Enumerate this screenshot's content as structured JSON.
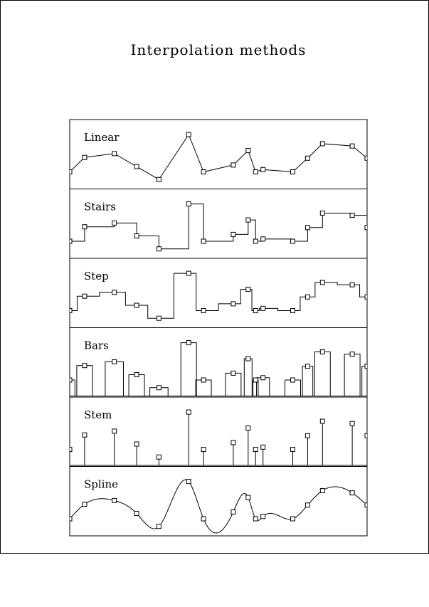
{
  "title": "Interpolation methods",
  "colors": {
    "line": "#000000",
    "background": "#ffffff"
  },
  "chart_data": {
    "type": "line",
    "title": "Interpolation methods",
    "xlabel": "",
    "ylabel": "",
    "grid": false,
    "legend": "none",
    "xlim": [
      0,
      20
    ],
    "ylim": [
      0,
      10
    ],
    "points": {
      "x": [
        0,
        1,
        3,
        4.5,
        6,
        8,
        9,
        11,
        12,
        12.5,
        13,
        15,
        16,
        17,
        19,
        20
      ],
      "y": [
        2.1,
        4.0,
        4.5,
        2.8,
        1.1,
        7.0,
        2.1,
        3.0,
        4.9,
        2.1,
        2.4,
        2.1,
        3.9,
        5.8,
        5.5,
        3.9
      ]
    },
    "panels": [
      {
        "method": "linear",
        "label": "Linear"
      },
      {
        "method": "stairs",
        "label": "Stairs"
      },
      {
        "method": "step",
        "label": "Step"
      },
      {
        "method": "bars",
        "label": "Bars"
      },
      {
        "method": "stem",
        "label": "Stem"
      },
      {
        "method": "spline",
        "label": "Spline"
      }
    ]
  }
}
